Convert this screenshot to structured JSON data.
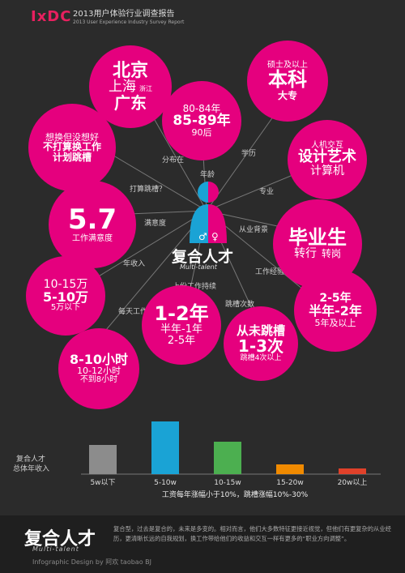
{
  "header": {
    "logo": "IxDC",
    "title": "2013用户体验行业调查报告",
    "subtitle": "2013 User Experience Industry Survey Report"
  },
  "colors": {
    "accent": "#e5007e",
    "background": "#2b2b2b",
    "bar_gray": "#8c8c8c",
    "bar_blue": "#1aa3d5",
    "bar_green": "#4caf50",
    "bar_orange": "#f08a00",
    "bar_red": "#e0412a"
  },
  "center": {
    "title": "复合人才",
    "subtitle": "Multi-talent"
  },
  "connectors": {
    "distribution": "分布在",
    "age": "年龄",
    "education": "学历",
    "major": "专业",
    "job_hop_plan": "打算跳槽？",
    "satisfaction": "满意度",
    "background": "从业背景",
    "income": "年收入",
    "experience": "工作经验",
    "last_job": "上份工作持续",
    "hops": "跳槽次数",
    "daily_work": "每天工作"
  },
  "bubbles": {
    "location": {
      "l1": "北京",
      "l2": "上海",
      "l2b": "浙江",
      "l3": "广东"
    },
    "age": {
      "l1": "80-84年",
      "l2": "85-89年",
      "l3": "90后"
    },
    "education": {
      "l1": "硕士及以上",
      "l2": "本科",
      "l3": "大专"
    },
    "hop_plan": {
      "l1": "想换但没想好",
      "l2": "不打算换工作",
      "l3": "计划跳槽"
    },
    "major": {
      "l1": "人机交互",
      "l2": "设计艺术",
      "l3": "计算机"
    },
    "satisfaction": {
      "l1": "5.7",
      "l2": "工作满意度"
    },
    "background": {
      "l1": "毕业生",
      "l2": "转行",
      "l2b": "转岗"
    },
    "income": {
      "l1": "10-15万",
      "l2": "5-10万",
      "l3": "5万以下"
    },
    "experience": {
      "l1": "2-5年",
      "l2": "半年-2年",
      "l3": "5年及以上"
    },
    "last_job": {
      "l1": "1-2年",
      "l2": "半年-1年",
      "l3": "2-5年"
    },
    "hops": {
      "l1": "从未跳槽",
      "l2": "1-3次",
      "l3": "跳槽4次以上"
    },
    "daily": {
      "l1": "8-10小时",
      "l2": "10-12小时",
      "l3": "不到8小时"
    }
  },
  "chart_data": {
    "type": "bar",
    "title": "复合人才总体年收入",
    "categories": [
      "5w以下",
      "5-10w",
      "10-15w",
      "15-20w",
      "20w以上"
    ],
    "values": [
      36,
      65,
      40,
      12,
      7
    ],
    "xlabel": "工资每年涨幅小于10%，跳槽涨幅10%-30%",
    "ylabel": "",
    "ylim": [
      0,
      70
    ]
  },
  "footer": {
    "title": "复合人才",
    "subtitle": "Multi-talent",
    "text": "复合型，过去是复合的，未来是多变的。相对而言，他们大多数特征更接近视觉，但他们有更复杂的从业经历，更清晰长远的自我规划，换工作带给他们的收益和交互一样有更多的“职业方向调整”。",
    "credit": "Infographic Design by 阿欢 taobao BJ"
  }
}
